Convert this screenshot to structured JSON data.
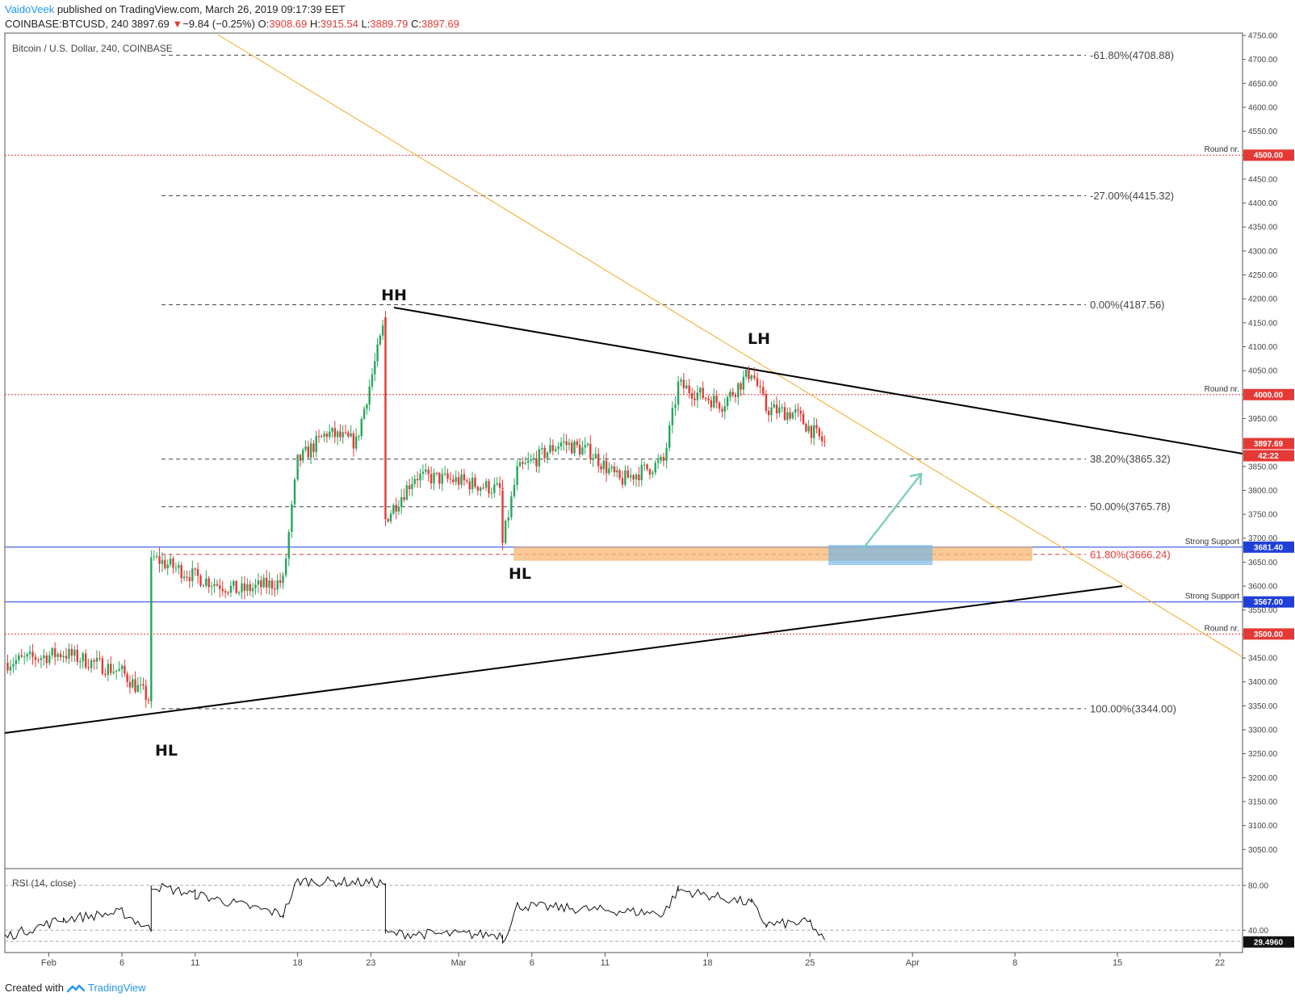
{
  "header": {
    "author": "VaidoVeek",
    "published_text": "published on TradingView.com, March 26, 2019 09:17:39 EET",
    "symbol": "COINBASE:BTCUSD, 240",
    "last": "3897.69",
    "change": "−9.84 (−0.25%)",
    "open_label": "O:",
    "open": "3908.69",
    "high_label": "H:",
    "high": "3915.54",
    "low_label": "L:",
    "low": "3889.79",
    "close_label": "C:",
    "close": "3897.69"
  },
  "footer": {
    "created_with": "Created with",
    "brand": "TradingView"
  },
  "chart_data": {
    "type": "candlestick",
    "title": "Bitcoin / U.S. Dollar, 240, COINBASE",
    "ylim": [
      3010,
      4755
    ],
    "y_ticks": [
      "4750.00",
      "4700.00",
      "4650.00",
      "4600.00",
      "4550.00",
      "4500.00",
      "4450.00",
      "4400.00",
      "4350.00",
      "4300.00",
      "4250.00",
      "4200.00",
      "4150.00",
      "4100.00",
      "4050.00",
      "4000.00",
      "3950.00",
      "3900.00",
      "3850.00",
      "3800.00",
      "3750.00",
      "3700.00",
      "3650.00",
      "3600.00",
      "3550.00",
      "3500.00",
      "3450.00",
      "3400.00",
      "3350.00",
      "3300.00",
      "3250.00",
      "3200.00",
      "3150.00",
      "3100.00",
      "3050.00"
    ],
    "x_ticks": [
      "Feb",
      "6",
      "11",
      "18",
      "23",
      "Mar",
      "6",
      "11",
      "18",
      "25",
      "Apr",
      "8",
      "15",
      "22"
    ],
    "price_path": [
      [
        "2019-01-29",
        3440
      ],
      [
        "2019-02-02",
        3460
      ],
      [
        "2019-02-06",
        3420
      ],
      [
        "2019-02-08",
        3360
      ],
      [
        "2019-02-08",
        3660
      ],
      [
        "2019-02-11",
        3620
      ],
      [
        "2019-02-14",
        3590
      ],
      [
        "2019-02-17",
        3610
      ],
      [
        "2019-02-18",
        3860
      ],
      [
        "2019-02-20",
        3920
      ],
      [
        "2019-02-22",
        3900
      ],
      [
        "2019-02-24",
        4160
      ],
      [
        "2019-02-24",
        3740
      ],
      [
        "2019-02-26",
        3830
      ],
      [
        "2019-03-01",
        3820
      ],
      [
        "2019-03-04",
        3800
      ],
      [
        "2019-03-04",
        3690
      ],
      [
        "2019-03-05",
        3840
      ],
      [
        "2019-03-08",
        3900
      ],
      [
        "2019-03-10",
        3880
      ],
      [
        "2019-03-12",
        3820
      ],
      [
        "2019-03-15",
        3860
      ],
      [
        "2019-03-16",
        4020
      ],
      [
        "2019-03-19",
        3980
      ],
      [
        "2019-03-21",
        4050
      ],
      [
        "2019-03-22",
        3970
      ],
      [
        "2019-03-24",
        3960
      ],
      [
        "2019-03-26",
        3897.69
      ]
    ],
    "horizontal_levels": [
      {
        "label": "Round nr.",
        "price": "4500.00",
        "color": "#e53935",
        "style": "dotted"
      },
      {
        "label": "Round nr.",
        "price": "4000.00",
        "color": "#e53935",
        "style": "dotted"
      },
      {
        "label": "Round nr.",
        "price": "3500.00",
        "color": "#e53935",
        "style": "dotted"
      },
      {
        "label": "Strong Support",
        "price": "3681.40",
        "color": "#1e3fd8",
        "style": "solid"
      },
      {
        "label": "Strong Support",
        "price": "3567.00",
        "color": "#1e3fd8",
        "style": "solid"
      }
    ],
    "fibonacci": [
      {
        "level": "-61.80%(4708.88)",
        "price": 4708.88
      },
      {
        "level": "-27.00%(4415.32)",
        "price": 4415.32
      },
      {
        "level": "0.00%(4187.56)",
        "price": 4187.56
      },
      {
        "level": "38.20%(3865.32)",
        "price": 3865.32
      },
      {
        "level": "50.00%(3765.78)",
        "price": 3765.78
      },
      {
        "level": "61.80%(3666.24)",
        "price": 3666.24
      },
      {
        "level": "100.00%(3344.00)",
        "price": 3344.0
      }
    ],
    "annotations": [
      "HH",
      "LH",
      "HL",
      "HL"
    ],
    "last_price_badge": "3897.69",
    "countdown_badge": "42:22",
    "rsi": {
      "title": "RSI (14, close)",
      "ylim": [
        20,
        95
      ],
      "ticks": [
        "80.00",
        "40.00"
      ],
      "last": "29.4960",
      "path": [
        [
          "2019-01-29",
          34
        ],
        [
          "2019-02-02",
          50
        ],
        [
          "2019-02-06",
          56
        ],
        [
          "2019-02-08",
          40
        ],
        [
          "2019-02-08",
          80
        ],
        [
          "2019-02-11",
          72
        ],
        [
          "2019-02-17",
          54
        ],
        [
          "2019-02-18",
          84
        ],
        [
          "2019-02-24",
          82
        ],
        [
          "2019-02-24",
          37
        ],
        [
          "2019-03-04",
          36
        ],
        [
          "2019-03-04",
          29
        ],
        [
          "2019-03-05",
          62
        ],
        [
          "2019-03-15",
          55
        ],
        [
          "2019-03-16",
          76
        ],
        [
          "2019-03-21",
          64
        ],
        [
          "2019-03-22",
          45
        ],
        [
          "2019-03-25",
          47
        ],
        [
          "2019-03-26",
          29.5
        ]
      ]
    }
  },
  "colors": {
    "up": "#26a65b",
    "down": "#e53935",
    "fib": "#444444",
    "round": "#e53935",
    "support": "#1e3fd8",
    "zone": "#f7b774",
    "zone_blue": "#6fb3e8",
    "arrow": "#7fd1b9",
    "trend_orange": "#f5a623"
  }
}
